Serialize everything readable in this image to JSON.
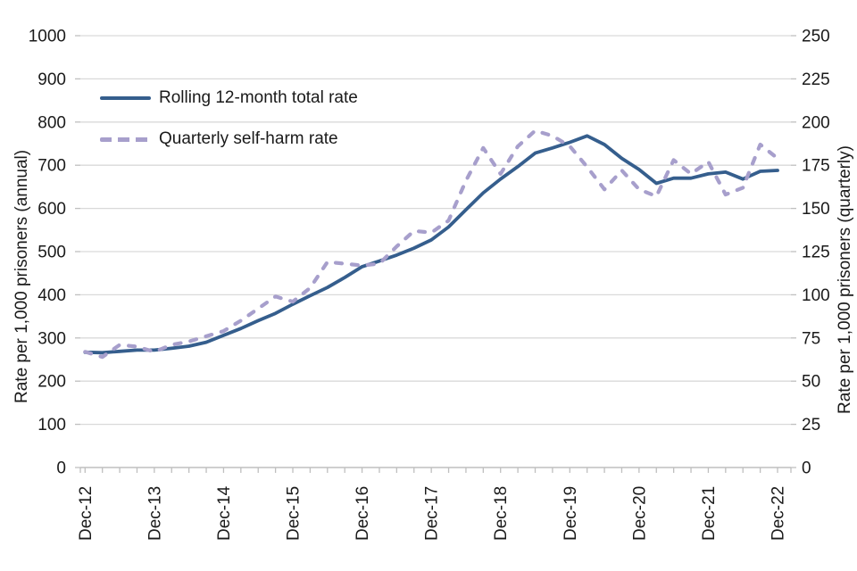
{
  "chart_data": {
    "type": "line",
    "title": "",
    "n_quarterly_points": 41,
    "x_start": "Dec-12",
    "x_end": "Dec-22",
    "x_tick_labels": [
      "Dec-12",
      "Dec-13",
      "Dec-14",
      "Dec-15",
      "Dec-16",
      "Dec-17",
      "Dec-18",
      "Dec-19",
      "Dec-20",
      "Dec-21",
      "Dec-22"
    ],
    "x_label_every_n_quarters": 4,
    "left_axis": {
      "label": "Rate per 1,000 prisoners (annual)",
      "range": [
        0,
        1000
      ],
      "ticks": [
        0,
        100,
        200,
        300,
        400,
        500,
        600,
        700,
        800,
        900,
        1000
      ]
    },
    "right_axis": {
      "label": "Rate per 1,000 prisoners (quarterly)",
      "range": [
        0,
        250
      ],
      "ticks": [
        0,
        25,
        50,
        75,
        100,
        125,
        150,
        175,
        200,
        225,
        250
      ]
    },
    "grid": {
      "horizontal": true,
      "vertical": false,
      "color": "#d9d9d9"
    },
    "legend_position": "top-left-inside",
    "series": [
      {
        "name": "Rolling 12-month total rate",
        "axis": "left",
        "style": "solid",
        "color": "#355e8d",
        "values": [
          267,
          266,
          269,
          272,
          272,
          276,
          281,
          290,
          306,
          322,
          340,
          357,
          378,
          398,
          417,
          440,
          465,
          478,
          492,
          508,
          527,
          557,
          597,
          636,
          668,
          697,
          728,
          740,
          753,
          768,
          748,
          716,
          690,
          658,
          670,
          670,
          680,
          684,
          668,
          686,
          688
        ]
      },
      {
        "name": "Quarterly self-harm rate",
        "axis": "right",
        "style": "dashed",
        "color": "#a79fcc",
        "values": [
          67,
          64,
          71,
          70,
          67,
          71,
          73,
          76,
          79,
          85,
          92,
          99,
          96,
          104,
          119,
          118,
          117,
          118,
          128,
          137,
          136,
          143,
          166,
          185,
          170,
          186,
          195,
          192,
          186,
          174,
          161,
          172,
          161,
          157,
          178,
          170,
          177,
          158,
          162,
          187,
          179
        ]
      }
    ]
  },
  "colors": {
    "background": "#ffffff",
    "gridline": "#d9d9d9",
    "axis_line": "#bfbfbf",
    "tick_mark": "#bfbfbf",
    "text": "#1a1a1a"
  }
}
